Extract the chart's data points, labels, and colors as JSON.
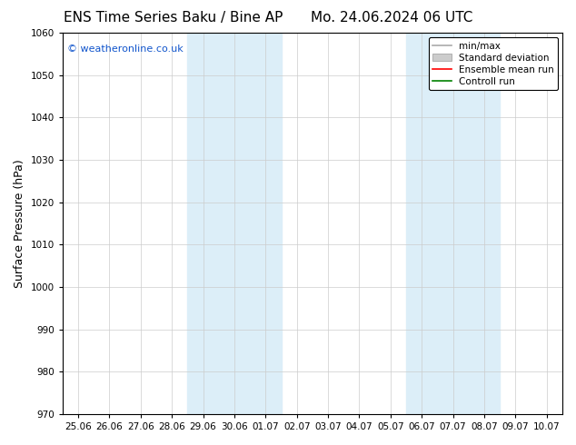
{
  "title_left": "ENS Time Series Baku / Bine AP",
  "title_right": "Mo. 24.06.2024 06 UTC",
  "ylabel": "Surface Pressure (hPa)",
  "ylim": [
    970,
    1060
  ],
  "yticks": [
    970,
    980,
    990,
    1000,
    1010,
    1020,
    1030,
    1040,
    1050,
    1060
  ],
  "x_tick_labels": [
    "25.06",
    "26.06",
    "27.06",
    "28.06",
    "29.06",
    "30.06",
    "01.07",
    "02.07",
    "03.07",
    "04.07",
    "05.07",
    "06.07",
    "07.07",
    "08.07",
    "09.07",
    "10.07"
  ],
  "x_tick_positions": [
    0,
    1,
    2,
    3,
    4,
    5,
    6,
    7,
    8,
    9,
    10,
    11,
    12,
    13,
    14,
    15
  ],
  "xlim": [
    -0.5,
    15.5
  ],
  "shaded_bands": [
    {
      "start": 3.5,
      "end": 6.5
    },
    {
      "start": 10.5,
      "end": 13.5
    }
  ],
  "shade_color": "#dceef8",
  "background_color": "#ffffff",
  "legend_items": [
    {
      "label": "min/max",
      "color": "#aaaaaa",
      "lw": 1.2,
      "style": "line"
    },
    {
      "label": "Standard deviation",
      "color": "#bbbbbb",
      "lw": 7,
      "style": "band"
    },
    {
      "label": "Ensemble mean run",
      "color": "#ff0000",
      "lw": 1.2,
      "style": "line"
    },
    {
      "label": "Controll run",
      "color": "#008000",
      "lw": 1.2,
      "style": "line"
    }
  ],
  "watermark": "© weatheronline.co.uk",
  "watermark_color": "#1155cc",
  "tick_fontsize": 7.5,
  "ylabel_fontsize": 9,
  "title_fontsize": 11,
  "grid_color": "#cccccc",
  "grid_lw": 0.5
}
